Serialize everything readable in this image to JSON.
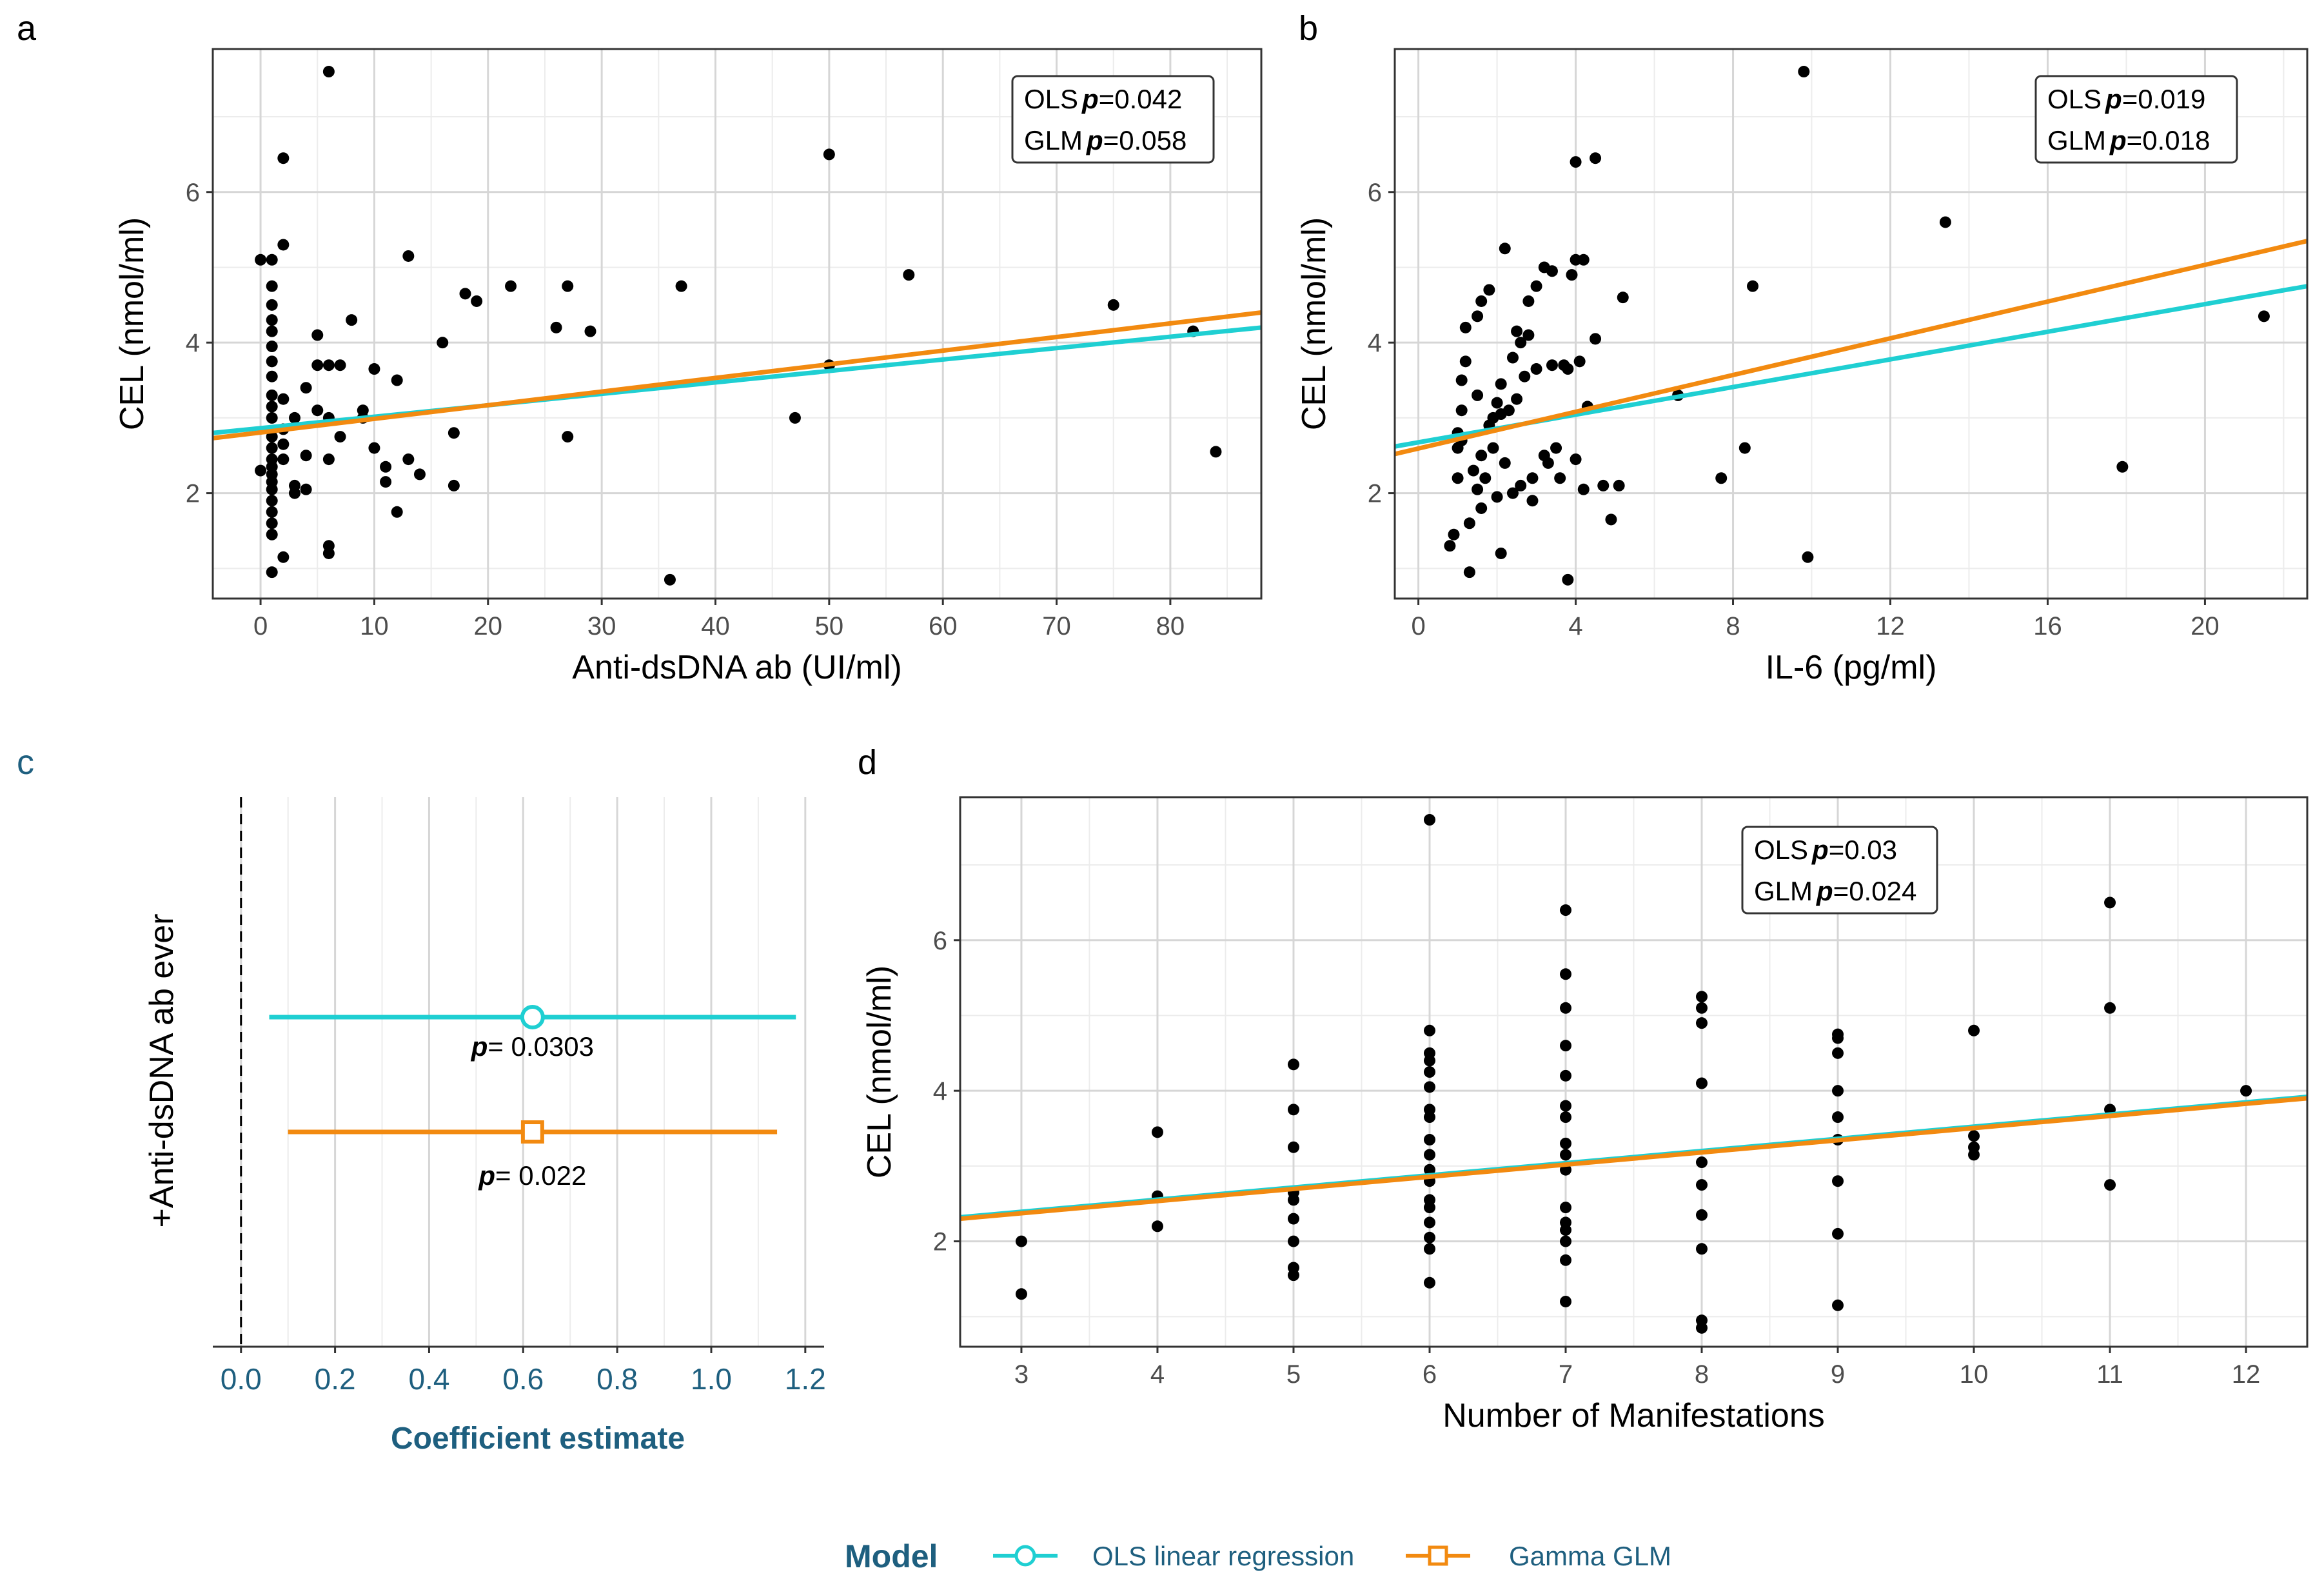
{
  "colors": {
    "ols": "#1fcfd2",
    "glm": "#f28a10",
    "axis_text": "#4d4d4d",
    "forest_text": "#1e5f7f"
  },
  "chart_data": [
    {
      "panel": "a",
      "type": "scatter",
      "xlabel": "Anti-dsDNA ab (UI/ml)",
      "ylabel": "CEL (nmol/ml)",
      "xlim": [
        -4.2,
        88
      ],
      "ylim": [
        0.6,
        7.9
      ],
      "xticks": [
        0,
        10,
        20,
        30,
        40,
        50,
        60,
        70,
        80
      ],
      "yticks": [
        2,
        4,
        6
      ],
      "points": [
        [
          1,
          0.95
        ],
        [
          1,
          1.45
        ],
        [
          1,
          1.6
        ],
        [
          1,
          1.75
        ],
        [
          1,
          1.9
        ],
        [
          1,
          2.05
        ],
        [
          1,
          2.15
        ],
        [
          1,
          2.25
        ],
        [
          1,
          2.35
        ],
        [
          1,
          2.45
        ],
        [
          1,
          2.6
        ],
        [
          1,
          2.75
        ],
        [
          1,
          3.0
        ],
        [
          1,
          3.15
        ],
        [
          1,
          3.3
        ],
        [
          1,
          3.55
        ],
        [
          1,
          3.75
        ],
        [
          1,
          3.95
        ],
        [
          1,
          4.15
        ],
        [
          1,
          4.3
        ],
        [
          1,
          4.5
        ],
        [
          1,
          4.75
        ],
        [
          1,
          5.1
        ],
        [
          0,
          2.3
        ],
        [
          0,
          5.1
        ],
        [
          2,
          1.15
        ],
        [
          2,
          2.45
        ],
        [
          2,
          2.65
        ],
        [
          2,
          2.85
        ],
        [
          2,
          3.25
        ],
        [
          2,
          5.3
        ],
        [
          2,
          6.45
        ],
        [
          3,
          2.0
        ],
        [
          3,
          2.1
        ],
        [
          3,
          3.0
        ],
        [
          4,
          2.05
        ],
        [
          4,
          2.5
        ],
        [
          4,
          3.4
        ],
        [
          5,
          3.1
        ],
        [
          5,
          3.7
        ],
        [
          5,
          4.1
        ],
        [
          6,
          1.2
        ],
        [
          6,
          1.3
        ],
        [
          6,
          2.45
        ],
        [
          6,
          3.0
        ],
        [
          6,
          3.7
        ],
        [
          6,
          7.6
        ],
        [
          7,
          2.75
        ],
        [
          7,
          3.7
        ],
        [
          8,
          4.3
        ],
        [
          9,
          3.0
        ],
        [
          9,
          3.1
        ],
        [
          10,
          2.6
        ],
        [
          10,
          3.65
        ],
        [
          11,
          2.15
        ],
        [
          11,
          2.35
        ],
        [
          12,
          1.75
        ],
        [
          12,
          3.5
        ],
        [
          13,
          2.45
        ],
        [
          13,
          5.15
        ],
        [
          14,
          2.25
        ],
        [
          16,
          4.0
        ],
        [
          17,
          2.1
        ],
        [
          17,
          2.8
        ],
        [
          18,
          4.65
        ],
        [
          19,
          4.55
        ],
        [
          22,
          4.75
        ],
        [
          26,
          4.2
        ],
        [
          27,
          2.75
        ],
        [
          27,
          4.75
        ],
        [
          29,
          4.15
        ],
        [
          36,
          0.85
        ],
        [
          37,
          4.75
        ],
        [
          47,
          3.0
        ],
        [
          50,
          3.7
        ],
        [
          50,
          6.5
        ],
        [
          57,
          4.9
        ],
        [
          75,
          4.5
        ],
        [
          82,
          4.15
        ],
        [
          84,
          2.55
        ]
      ],
      "series": [
        {
          "name": "OLS linear regression",
          "x": [
            -4.2,
            88
          ],
          "y": [
            2.8,
            4.2
          ]
        },
        {
          "name": "Gamma GLM",
          "x": [
            -4.2,
            88
          ],
          "y": [
            2.73,
            4.4
          ]
        }
      ],
      "annotation": {
        "ols_prefix": "OLS",
        "ols_value": "=0.042",
        "glm_prefix": "GLM",
        "glm_value": "=0.058",
        "p_symbol": "p"
      }
    },
    {
      "panel": "b",
      "type": "scatter",
      "xlabel": "IL-6 (pg/ml)",
      "ylabel": "CEL (nmol/ml)",
      "xlim": [
        -0.6,
        22.6
      ],
      "ylim": [
        0.6,
        7.9
      ],
      "xticks": [
        0,
        4,
        8,
        12,
        16,
        20
      ],
      "yticks": [
        2,
        4,
        6
      ],
      "points": [
        [
          0.8,
          1.3
        ],
        [
          0.9,
          1.45
        ],
        [
          1.0,
          2.2
        ],
        [
          1.0,
          2.6
        ],
        [
          1.0,
          2.8
        ],
        [
          1.1,
          2.7
        ],
        [
          1.1,
          3.1
        ],
        [
          1.1,
          3.5
        ],
        [
          1.2,
          3.75
        ],
        [
          1.2,
          4.2
        ],
        [
          1.3,
          0.95
        ],
        [
          1.3,
          1.6
        ],
        [
          1.4,
          2.3
        ],
        [
          1.5,
          2.05
        ],
        [
          1.5,
          3.3
        ],
        [
          1.5,
          4.35
        ],
        [
          1.6,
          1.8
        ],
        [
          1.6,
          2.5
        ],
        [
          1.6,
          4.55
        ],
        [
          1.7,
          2.2
        ],
        [
          1.8,
          2.9
        ],
        [
          1.8,
          4.7
        ],
        [
          1.9,
          2.6
        ],
        [
          1.9,
          3.0
        ],
        [
          2.0,
          1.95
        ],
        [
          2.0,
          3.2
        ],
        [
          2.1,
          1.2
        ],
        [
          2.1,
          3.05
        ],
        [
          2.1,
          3.45
        ],
        [
          2.2,
          2.4
        ],
        [
          2.2,
          5.25
        ],
        [
          2.3,
          3.1
        ],
        [
          2.4,
          2.0
        ],
        [
          2.4,
          3.8
        ],
        [
          2.5,
          3.25
        ],
        [
          2.5,
          4.15
        ],
        [
          2.6,
          2.1
        ],
        [
          2.6,
          4.0
        ],
        [
          2.7,
          3.55
        ],
        [
          2.8,
          4.1
        ],
        [
          2.8,
          4.55
        ],
        [
          2.9,
          1.9
        ],
        [
          2.9,
          2.2
        ],
        [
          3.0,
          3.65
        ],
        [
          3.0,
          4.75
        ],
        [
          3.2,
          2.5
        ],
        [
          3.2,
          5.0
        ],
        [
          3.3,
          2.4
        ],
        [
          3.4,
          4.95
        ],
        [
          3.4,
          3.7
        ],
        [
          3.5,
          2.6
        ],
        [
          3.6,
          2.2
        ],
        [
          3.7,
          3.7
        ],
        [
          3.8,
          3.65
        ],
        [
          3.8,
          0.85
        ],
        [
          3.9,
          4.9
        ],
        [
          4.0,
          2.45
        ],
        [
          4.0,
          5.1
        ],
        [
          4.0,
          6.4
        ],
        [
          4.1,
          3.75
        ],
        [
          4.2,
          5.1
        ],
        [
          4.2,
          2.05
        ],
        [
          4.3,
          3.15
        ],
        [
          4.5,
          4.05
        ],
        [
          4.5,
          6.45
        ],
        [
          4.7,
          2.1
        ],
        [
          4.9,
          1.65
        ],
        [
          5.1,
          2.1
        ],
        [
          5.2,
          4.6
        ],
        [
          6.6,
          3.3
        ],
        [
          7.7,
          2.2
        ],
        [
          8.3,
          2.6
        ],
        [
          8.5,
          4.75
        ],
        [
          9.8,
          7.6
        ],
        [
          9.9,
          1.15
        ],
        [
          13.4,
          5.6
        ],
        [
          17.9,
          2.35
        ],
        [
          21.5,
          4.35
        ]
      ],
      "series": [
        {
          "name": "OLS linear regression",
          "x": [
            -0.6,
            22.6
          ],
          "y": [
            2.62,
            4.75
          ]
        },
        {
          "name": "Gamma GLM",
          "x": [
            -0.6,
            22.6
          ],
          "y": [
            2.52,
            5.35
          ]
        }
      ],
      "annotation": {
        "ols_prefix": "OLS",
        "ols_value": "=0.019",
        "glm_prefix": "GLM",
        "glm_value": "=0.018",
        "p_symbol": "p"
      }
    },
    {
      "panel": "c",
      "type": "forest",
      "xlabel": "Coefficient estimate",
      "ylabel": "+Anti-dsDNA ab ever",
      "xlim": [
        -0.06,
        1.24
      ],
      "xticks": [
        0.0,
        0.2,
        0.4,
        0.6,
        0.8,
        1.0,
        1.2
      ],
      "xtick_labels": [
        "0.0",
        "0.2",
        "0.4",
        "0.6",
        "0.8",
        "1.0",
        "1.2"
      ],
      "reference_line": 0,
      "estimates": [
        {
          "model": "OLS linear regression",
          "estimate": 0.62,
          "ci": [
            0.06,
            1.18
          ],
          "p_symbol": "p",
          "p_text": "= 0.0303"
        },
        {
          "model": "Gamma GLM",
          "estimate": 0.62,
          "ci": [
            0.1,
            1.14
          ],
          "p_symbol": "p",
          "p_text": "= 0.022"
        }
      ]
    },
    {
      "panel": "d",
      "type": "scatter",
      "xlabel": "Number of Manifestations",
      "ylabel": "CEL (nmol/ml)",
      "xlim": [
        2.55,
        12.45
      ],
      "ylim": [
        0.6,
        7.9
      ],
      "xticks": [
        3,
        4,
        5,
        6,
        7,
        8,
        9,
        10,
        11,
        12
      ],
      "yticks": [
        2,
        4,
        6
      ],
      "points": [
        [
          3,
          1.3
        ],
        [
          3,
          2.0
        ],
        [
          4,
          2.2
        ],
        [
          4,
          2.6
        ],
        [
          4,
          3.45
        ],
        [
          5,
          1.55
        ],
        [
          5,
          1.65
        ],
        [
          5,
          2.0
        ],
        [
          5,
          2.3
        ],
        [
          5,
          2.55
        ],
        [
          5,
          2.65
        ],
        [
          5,
          3.25
        ],
        [
          5,
          3.75
        ],
        [
          5,
          4.35
        ],
        [
          6,
          1.45
        ],
        [
          6,
          1.9
        ],
        [
          6,
          2.05
        ],
        [
          6,
          2.25
        ],
        [
          6,
          2.45
        ],
        [
          6,
          2.55
        ],
        [
          6,
          2.8
        ],
        [
          6,
          2.95
        ],
        [
          6,
          3.15
        ],
        [
          6,
          3.35
        ],
        [
          6,
          3.65
        ],
        [
          6,
          3.75
        ],
        [
          6,
          4.05
        ],
        [
          6,
          4.25
        ],
        [
          6,
          4.4
        ],
        [
          6,
          4.5
        ],
        [
          6,
          4.8
        ],
        [
          6,
          7.6
        ],
        [
          7,
          1.2
        ],
        [
          7,
          1.75
        ],
        [
          7,
          2.0
        ],
        [
          7,
          2.15
        ],
        [
          7,
          2.25
        ],
        [
          7,
          2.45
        ],
        [
          7,
          2.95
        ],
        [
          7,
          3.15
        ],
        [
          7,
          3.3
        ],
        [
          7,
          3.65
        ],
        [
          7,
          3.8
        ],
        [
          7,
          4.2
        ],
        [
          7,
          4.6
        ],
        [
          7,
          5.1
        ],
        [
          7,
          5.55
        ],
        [
          7,
          6.4
        ],
        [
          8,
          0.85
        ],
        [
          8,
          0.95
        ],
        [
          8,
          1.9
        ],
        [
          8,
          2.35
        ],
        [
          8,
          2.75
        ],
        [
          8,
          3.05
        ],
        [
          8,
          4.1
        ],
        [
          8,
          4.9
        ],
        [
          8,
          5.1
        ],
        [
          8,
          5.25
        ],
        [
          9,
          1.15
        ],
        [
          9,
          2.1
        ],
        [
          9,
          2.8
        ],
        [
          9,
          3.35
        ],
        [
          9,
          3.65
        ],
        [
          9,
          4.0
        ],
        [
          9,
          4.5
        ],
        [
          9,
          4.7
        ],
        [
          9,
          4.75
        ],
        [
          10,
          3.15
        ],
        [
          10,
          3.25
        ],
        [
          10,
          3.4
        ],
        [
          10,
          4.8
        ],
        [
          11,
          2.75
        ],
        [
          11,
          3.75
        ],
        [
          11,
          5.1
        ],
        [
          11,
          6.5
        ],
        [
          12,
          4.0
        ]
      ],
      "series": [
        {
          "name": "OLS linear regression",
          "x": [
            2.55,
            12.45
          ],
          "y": [
            2.32,
            3.92
          ]
        },
        {
          "name": "Gamma GLM",
          "x": [
            2.55,
            12.45
          ],
          "y": [
            2.3,
            3.9
          ]
        }
      ],
      "annotation": {
        "ols_prefix": "OLS",
        "ols_value": "=0.03",
        "glm_prefix": "GLM",
        "glm_value": "=0.024",
        "p_symbol": "p"
      }
    }
  ],
  "legend": {
    "title": "Model",
    "items": [
      {
        "label": "OLS linear regression",
        "shape": "circle"
      },
      {
        "label": "Gamma GLM",
        "shape": "square"
      }
    ]
  }
}
